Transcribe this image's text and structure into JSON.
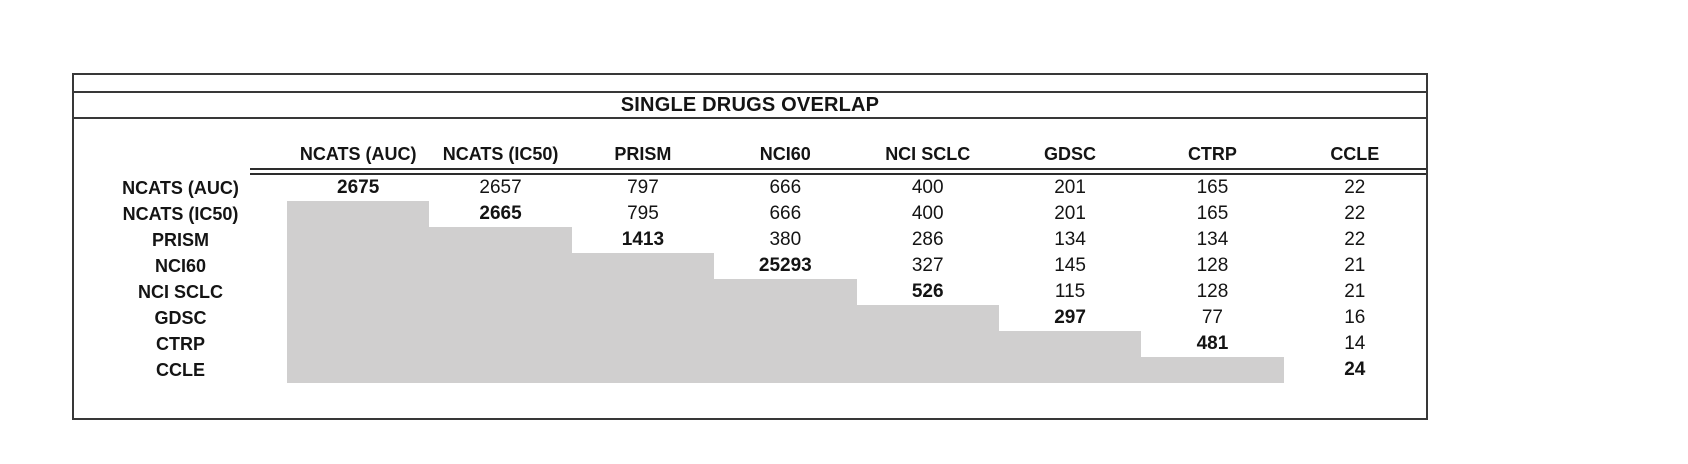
{
  "title": "SINGLE DRUGS OVERLAP",
  "chart_data": {
    "type": "table",
    "title": "SINGLE DRUGS OVERLAP",
    "description": "Upper-triangular overlap matrix of single drugs shared between screening datasets; diagonal (bold) is each dataset's own drug count; cells below the diagonal are shaded gray and empty.",
    "column_headers": [
      "NCATS (AUC)",
      "NCATS (IC50)",
      "PRISM",
      "NCI60",
      "NCI SCLC",
      "GDSC",
      "CTRP",
      "CCLE"
    ],
    "rows": [
      {
        "label": "NCATS (AUC)",
        "values": [
          "2675",
          "2657",
          "797",
          "666",
          "400",
          "201",
          "165",
          "22"
        ]
      },
      {
        "label": "NCATS (IC50)",
        "values": [
          "",
          "2665",
          "795",
          "666",
          "400",
          "201",
          "165",
          "22"
        ]
      },
      {
        "label": "PRISM",
        "values": [
          "",
          "",
          "1413",
          "380",
          "286",
          "134",
          "134",
          "22"
        ]
      },
      {
        "label": "NCI60",
        "values": [
          "",
          "",
          "",
          "25293",
          "327",
          "145",
          "128",
          "21"
        ]
      },
      {
        "label": "NCI SCLC",
        "values": [
          "",
          "",
          "",
          "",
          "526",
          "115",
          "128",
          "21"
        ]
      },
      {
        "label": "GDSC",
        "values": [
          "",
          "",
          "",
          "",
          "",
          "297",
          "77",
          "16"
        ]
      },
      {
        "label": "CTRP",
        "values": [
          "",
          "",
          "",
          "",
          "",
          "",
          "481",
          "14"
        ]
      },
      {
        "label": "CCLE",
        "values": [
          "",
          "",
          "",
          "",
          "",
          "",
          "",
          "24"
        ]
      }
    ]
  },
  "colors": {
    "shaded_cell": "#d0cfcf",
    "border": "#383838",
    "text": "#141414",
    "background": "#ffffff"
  }
}
